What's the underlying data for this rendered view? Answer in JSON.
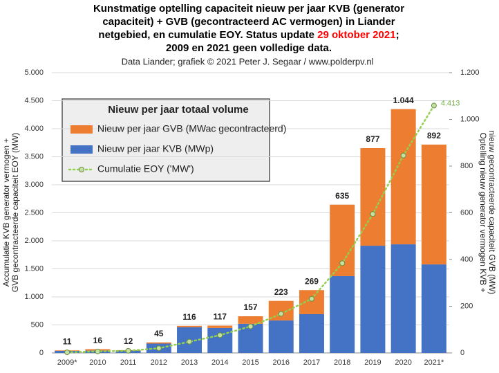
{
  "chart_data": {
    "type": "stacked-bar-line",
    "title_lines": [
      [
        {
          "text": "Kunstmatige optelling capaciteit nieuw per jaar KVB (generator",
          "color": "#000000"
        }
      ],
      [
        {
          "text": "capaciteit) + GVB (gecontracteerd AC vermogen) in Liander",
          "color": "#000000"
        }
      ],
      [
        {
          "text": "netgebied, en cumulatie EOY. Status update ",
          "color": "#000000"
        },
        {
          "text": "29 oktober 2021",
          "color": "#ff0000"
        },
        {
          "text": ";",
          "color": "#000000"
        }
      ],
      [
        {
          "text": "2009 en 2021 geen volledige data.",
          "color": "#000000"
        }
      ]
    ],
    "subtitle": "Data Liander;  grafiek © 2021 Peter J. Segaar / www.polderpv.nl",
    "ylabel": [
      "Accumulatie KVB generator vermogen +",
      "GVB gecontracteerde capaciteit EOY (MW)"
    ],
    "y2label": [
      "Optelling nieuw generator vermogen KVB +",
      "nieuw gecontracteerde capaciteit GVB (MW)"
    ],
    "legend_title": "Nieuw per jaar totaal volume",
    "categories": [
      "2009*",
      "2010",
      "2011",
      "2012",
      "2013",
      "2014",
      "2015",
      "2016",
      "2017",
      "2018",
      "2019",
      "2020",
      "2021*"
    ],
    "series": [
      {
        "name": "Nieuw per jaar KVB (MWp)",
        "color": "#4472c4",
        "axis": "y2",
        "kind": "bar",
        "values": [
          9,
          10,
          10,
          40,
          110,
          107,
          125,
          139,
          166,
          329,
          459,
          465,
          379
        ]
      },
      {
        "name": "Nieuw per jaar GVB (MWac gecontracteerd)",
        "color": "#ed7d31",
        "axis": "y2",
        "kind": "bar",
        "values": [
          2,
          6,
          2,
          5,
          6,
          10,
          32,
          84,
          103,
          306,
          418,
          579,
          513
        ]
      },
      {
        "name": "Cumulatie EOY ('MW')",
        "color": "#92d050",
        "axis": "y",
        "kind": "line",
        "values": [
          11,
          27,
          39,
          84,
          200,
          317,
          474,
          697,
          966,
          1601,
          2478,
          3522,
          4413
        ],
        "value_labels": [
          null,
          null,
          null,
          null,
          null,
          null,
          null,
          null,
          null,
          null,
          null,
          null,
          "4.413"
        ]
      }
    ],
    "totals": {
      "values": [
        11,
        16,
        12,
        45,
        116,
        117,
        157,
        223,
        269,
        635,
        877,
        1044,
        892
      ],
      "value_labels": [
        "11",
        "16",
        "12",
        "45",
        "116",
        "117",
        "157",
        "223",
        "269",
        "635",
        "877",
        "1.044",
        "892"
      ]
    },
    "ylim": [
      0,
      5000
    ],
    "yticks": [
      0,
      500,
      {
        "value": 1000,
        "label": "1.000"
      },
      {
        "value": 1500,
        "label": "1.500"
      },
      {
        "value": 2000,
        "label": "2.000"
      },
      {
        "value": 2500,
        "label": "2.500"
      },
      {
        "value": 3000,
        "label": "3.000"
      },
      {
        "value": 3500,
        "label": "3.500"
      },
      {
        "value": 4000,
        "label": "4.000"
      },
      {
        "value": 4500,
        "label": "4.500"
      },
      {
        "value": 5000,
        "label": "5.000"
      }
    ],
    "y2lim": [
      0,
      1200
    ],
    "y2ticks": [
      0,
      200,
      400,
      600,
      800,
      {
        "value": 1000,
        "label": "1.000"
      },
      {
        "value": 1200,
        "label": "1.200"
      }
    ],
    "grid": true
  }
}
